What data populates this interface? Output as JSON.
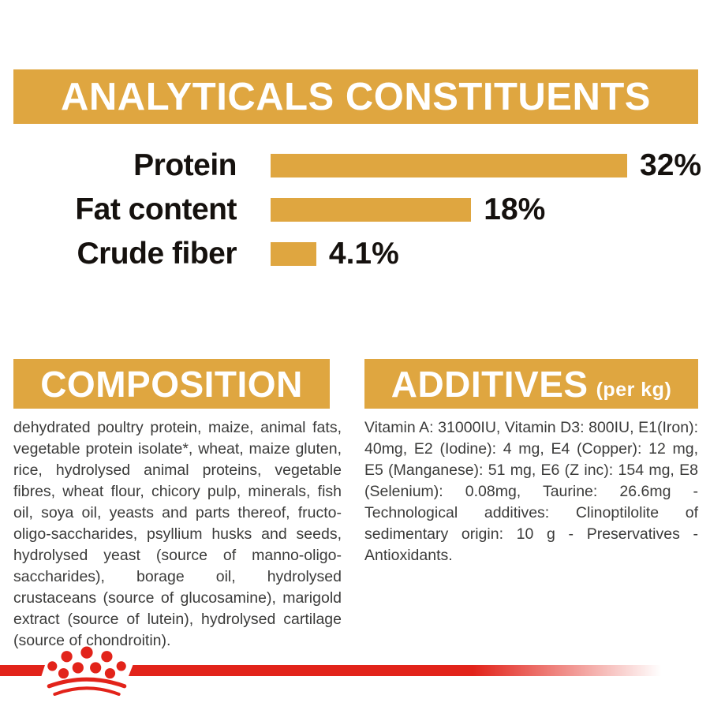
{
  "brand": {
    "accent_gold": "#dfa640",
    "accent_red": "#e2231a",
    "logo_icon": "royal-canin-crown-logo"
  },
  "analyticals": {
    "title": "ANALYTICALS CONSTITUENTS"
  },
  "chart_data": {
    "type": "bar",
    "orientation": "horizontal",
    "title": "ANALYTICALS CONSTITUENTS",
    "categories": [
      "Protein",
      "Fat content",
      "Crude fiber"
    ],
    "values": [
      32,
      18,
      4.1
    ],
    "value_labels": [
      "32%",
      "18%",
      "4.1%"
    ],
    "unit": "%",
    "xlim": [
      0,
      32
    ],
    "bar_color": "#dfa640",
    "label_color": "#15110e",
    "grid": false,
    "legend": false
  },
  "composition": {
    "title": "COMPOSITION",
    "body": "dehydrated poultry protein, maize, animal fats, vegetable protein isolate*, wheat, maize gluten, rice, hydrolysed animal proteins, vegetable fibres, wheat flour, chicory pulp, minerals, fish oil, soya oil, yeasts and parts thereof, fructo-oligo-saccharides, psyllium husks and seeds, hydrolysed yeast (source of manno-oligo-saccharides), borage oil, hydrolysed crustaceans (source of glucosamine), marigold extract (source of lutein), hydrolysed cartilage (source of chondroitin)."
  },
  "additives": {
    "title": "ADDITIVES",
    "unit_note": "(per kg)",
    "body": "Vitamin A: 31000IU, Vitamin D3: 800IU, E1(Iron): 40mg, E2 (Iodine): 4 mg, E4 (Copper): 12 mg, E5 (Manganese): 51 mg, E6 (Z inc): 154 mg, E8 (Selenium): 0.08mg, Taurine: 26.6mg - Technological additives: Clinoptilolite of sedimentary origin: 10 g - Preservatives -Antioxidants."
  }
}
